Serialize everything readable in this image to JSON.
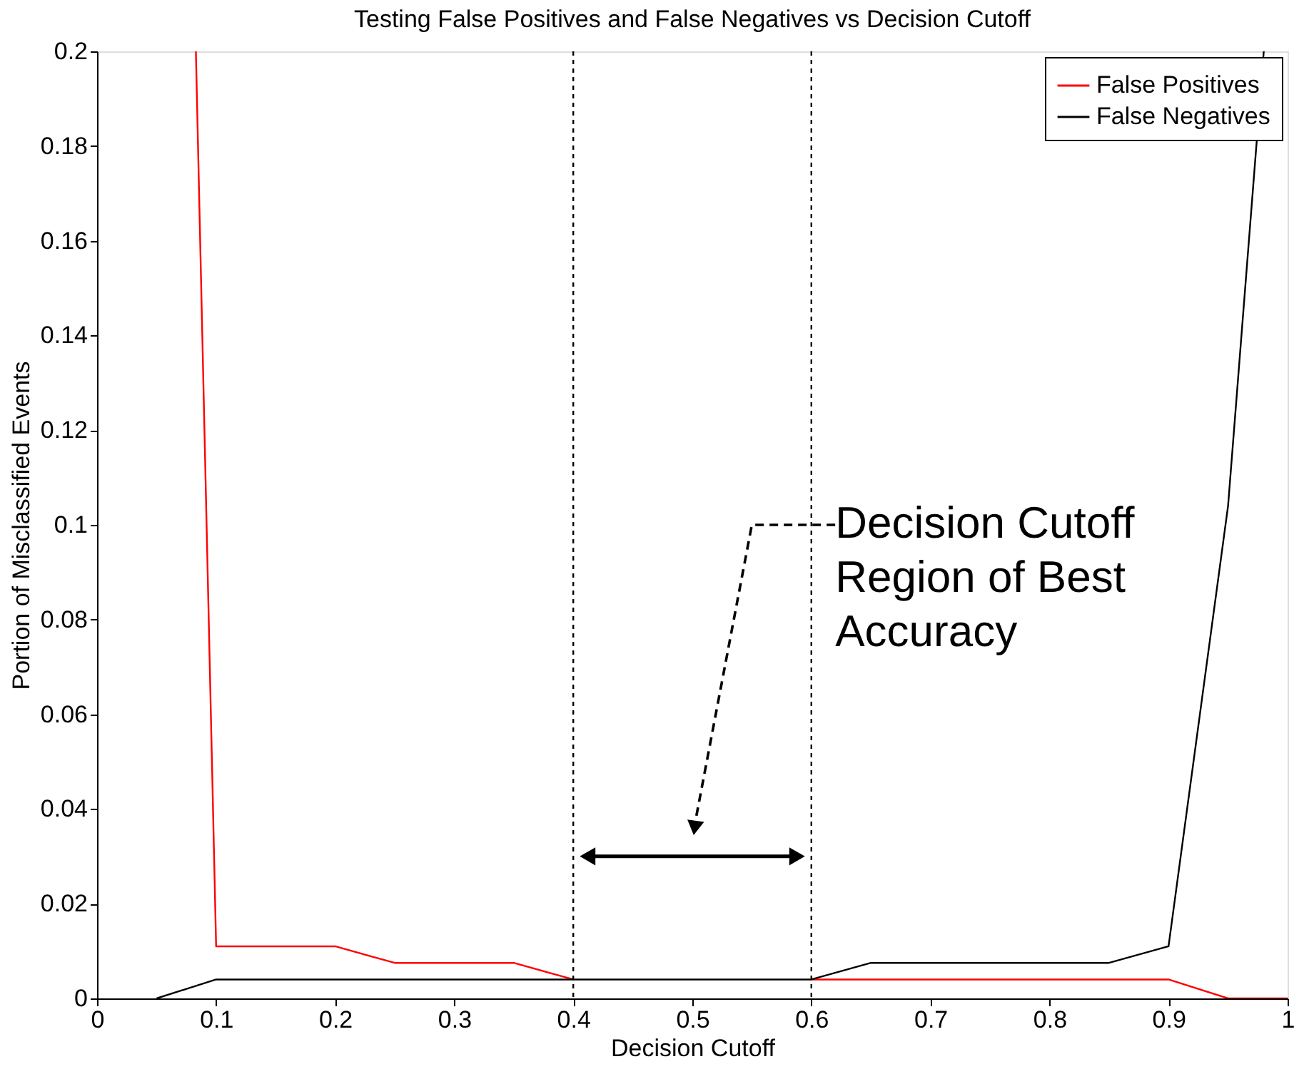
{
  "chart_data": {
    "type": "line",
    "title": "Testing False Positives and False Negatives vs Decision Cutoff",
    "xlabel": "Decision Cutoff",
    "ylabel": "Portion of Misclassified Events",
    "x": [
      0.083,
      0.1,
      0.2,
      0.25,
      0.35,
      0.4,
      0.45,
      0.5,
      0.55,
      0.6,
      0.65,
      0.7,
      0.75,
      0.8,
      0.85,
      0.9,
      0.95,
      1.0
    ],
    "series": [
      {
        "name": "False Positives",
        "color": "#ff0000",
        "values": [
          0.2,
          0.011,
          0.011,
          0.0075,
          0.0075,
          0.004,
          null,
          null,
          null,
          0.004,
          0.004,
          0.004,
          0.004,
          0.004,
          0.004,
          0.004,
          0.0,
          0.0
        ]
      },
      {
        "name": "False Negatives",
        "color": "#000000",
        "x": [
          0.05,
          0.1,
          0.2,
          0.25,
          0.35,
          0.4,
          0.45,
          0.5,
          0.55,
          0.6,
          0.65,
          0.7,
          0.75,
          0.8,
          0.85,
          0.9,
          0.95,
          0.98
        ],
        "values": [
          0.0,
          0.004,
          0.004,
          0.004,
          0.004,
          0.004,
          0.004,
          0.004,
          0.004,
          0.004,
          0.0075,
          0.0075,
          0.0075,
          0.0075,
          0.0075,
          0.011,
          0.104,
          0.2
        ]
      }
    ],
    "ref_lines": [
      {
        "axis": "x",
        "value": 0.4,
        "color": "#000000",
        "line_style": "dotted"
      },
      {
        "axis": "x",
        "value": 0.6,
        "color": "#000000",
        "line_style": "dotted"
      }
    ],
    "annotations": [
      "Decision Cutoff\nRegion of Best\nAccuracy"
    ],
    "xlim": [
      0,
      1
    ],
    "xticks": [
      0,
      0.1,
      0.2,
      0.3,
      0.4,
      0.5,
      0.6,
      0.7,
      0.8,
      0.9,
      1
    ],
    "ylim": [
      0,
      0.2
    ],
    "yticks": [
      0,
      0.02,
      0.04,
      0.06,
      0.08,
      0.1,
      0.12,
      0.14,
      0.16,
      0.18,
      0.2
    ],
    "grid": false,
    "legend": "top right",
    "marker": "none",
    "line_style": "solid"
  }
}
